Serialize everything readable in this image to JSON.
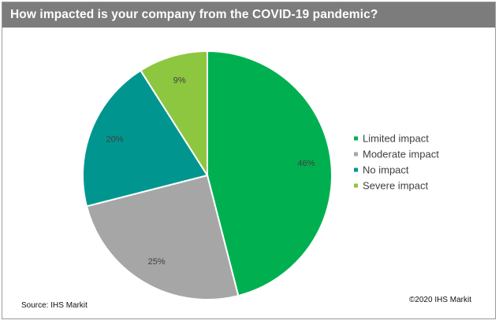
{
  "chart_data": {
    "type": "pie",
    "title": "How impacted is your company from the COVID-19 pandemic?",
    "slices": [
      {
        "label": "Limited impact",
        "value": 46,
        "display": "46%",
        "color": "#00b050"
      },
      {
        "label": "Moderate impact",
        "value": 25,
        "display": "25%",
        "color": "#a6a6a6"
      },
      {
        "label": "No impact",
        "value": 20,
        "display": "20%",
        "color": "#00968f"
      },
      {
        "label": "Severe impact",
        "value": 9,
        "display": "9%",
        "color": "#8dc63f"
      }
    ],
    "start_angle_deg": 0,
    "direction": "clockwise",
    "legend_position": "right",
    "slice_border_color": "#ffffff"
  },
  "footer": {
    "source": "Source: IHS Markit",
    "copyright": "©2020 IHS Markit"
  },
  "colors": {
    "title_bar": "#7c7c7c",
    "title_text": "#ffffff"
  }
}
